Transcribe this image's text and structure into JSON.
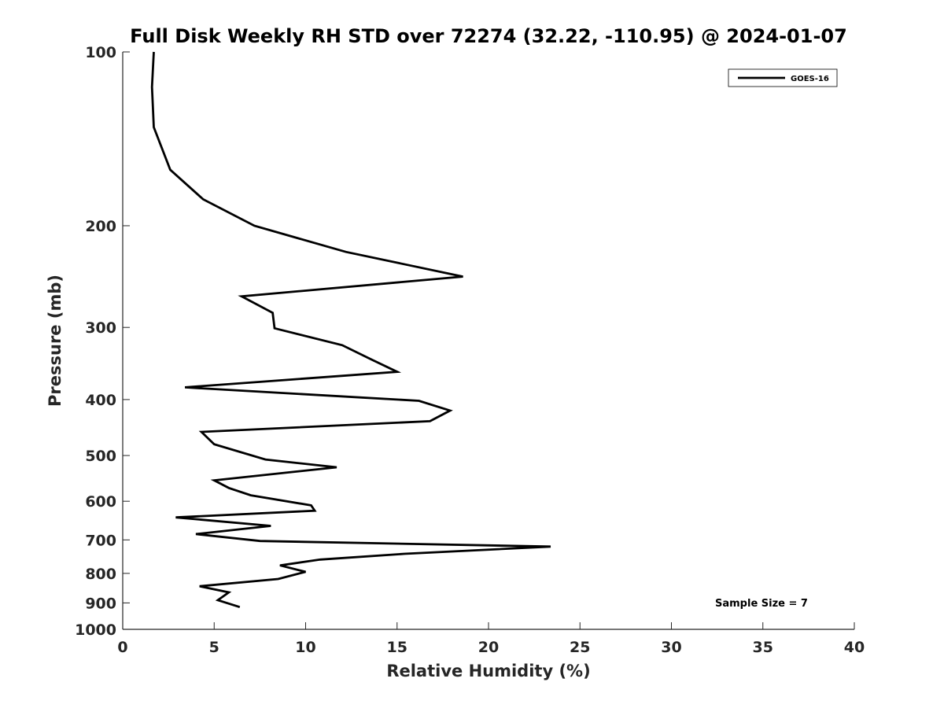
{
  "chart_data": {
    "type": "line",
    "title": "Full Disk Weekly RH STD over 72274 (32.22, -110.95) @ 2024-01-07",
    "xlabel": "Relative Humidity (%)",
    "ylabel": "Pressure (mb)",
    "xlim": [
      0,
      40
    ],
    "ylim": [
      100,
      1000
    ],
    "y_scale": "log",
    "y_reversed": true,
    "grid": false,
    "legend_position": "top-right",
    "xticks": [
      0,
      5,
      10,
      15,
      20,
      25,
      30,
      35,
      40
    ],
    "xtick_labels": [
      "0",
      "5",
      "10",
      "15",
      "20",
      "25",
      "30",
      "35",
      "40"
    ],
    "yticks": [
      100,
      200,
      300,
      400,
      500,
      600,
      700,
      800,
      900,
      1000
    ],
    "ytick_labels": [
      "100",
      "200",
      "300",
      "400",
      "500",
      "600",
      "700",
      "800",
      "900",
      "1000"
    ],
    "annotation": "Sample Size = 7",
    "series": [
      {
        "name": "GOES-16",
        "color": "#000000",
        "x": [
          1.7,
          1.6,
          1.7,
          2.6,
          4.4,
          7.2,
          12.2,
          18.6,
          6.5,
          8.2,
          8.3,
          12.0,
          13.6,
          15.0,
          3.4,
          16.2,
          17.9,
          16.8,
          4.3,
          5.0,
          7.8,
          11.7,
          5.0,
          5.8,
          7.0,
          10.3,
          10.5,
          2.9,
          8.1,
          4.0,
          7.5,
          23.4,
          15.4,
          10.8,
          8.6,
          10.0,
          8.5,
          4.2,
          5.8,
          5.2,
          6.4
        ],
        "y": [
          100,
          115,
          135,
          160,
          180,
          200,
          222,
          245,
          265,
          283,
          301,
          322,
          341,
          358,
          381,
          402,
          418,
          436,
          455,
          478,
          508,
          524,
          552,
          569,
          586,
          610,
          623,
          640,
          662,
          684,
          703,
          719,
          740,
          757,
          775,
          795,
          818,
          842,
          863,
          890,
          915
        ]
      }
    ]
  }
}
